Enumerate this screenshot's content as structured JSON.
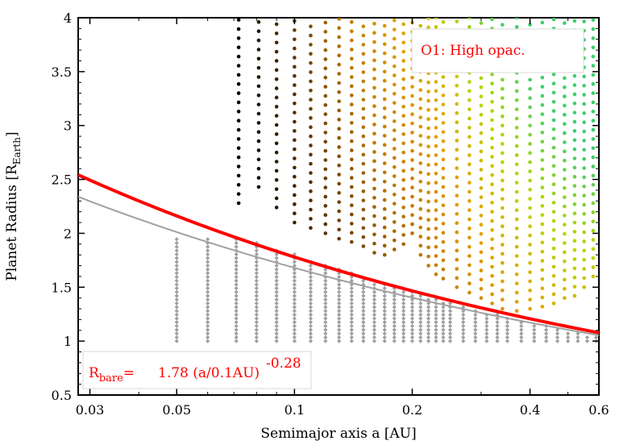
{
  "chart_data": {
    "type": "scatter",
    "xlabel": "Semimajor axis a [AU]",
    "ylabel": {
      "main": "Planet Radius [R",
      "sub": "Earth",
      "close": "]"
    },
    "x_scale": "log",
    "xlim": [
      0.028,
      0.6
    ],
    "ylim": [
      0.5,
      4
    ],
    "x_ticks": [
      0.03,
      0.05,
      0.1,
      0.2,
      0.4,
      0.6
    ],
    "x_tick_labels": [
      "0.03",
      "0.05",
      "0.1",
      "0.2",
      "0.4",
      "0.6"
    ],
    "y_ticks": [
      0.5,
      1,
      1.5,
      2,
      2.5,
      3,
      3.5,
      4
    ],
    "y_tick_labels": [
      "0.5",
      "1",
      "1.5",
      "2",
      "2.5",
      "3",
      "3.5",
      "4"
    ],
    "grid": false,
    "legend": {
      "label": "O1: High opac.",
      "placement": "top-right"
    },
    "annotation": {
      "r": "R",
      "sub": "bare",
      "eq": "=",
      "formula": "1.78 (a/0.1AU)",
      "exponent": "-0.28",
      "placement": "bottom-left"
    },
    "series": [
      {
        "type": "line",
        "color": "#ff0000",
        "formula": "R = 1.78 (a/0.1AU)^-0.28",
        "x": [
          0.028,
          0.04,
          0.06,
          0.08,
          0.1,
          0.15,
          0.2,
          0.3,
          0.4,
          0.5,
          0.6
        ],
        "y": [
          2.54,
          2.27,
          2.02,
          1.89,
          1.78,
          1.59,
          1.47,
          1.31,
          1.21,
          1.13,
          1.08
        ]
      },
      {
        "type": "line",
        "color": "#a0a0a0",
        "x": [
          0.028,
          0.04,
          0.06,
          0.08,
          0.1,
          0.15,
          0.2,
          0.3,
          0.4,
          0.5,
          0.6
        ],
        "y": [
          2.38,
          2.15,
          1.92,
          1.78,
          1.68,
          1.5,
          1.39,
          1.23,
          1.14,
          1.07,
          1.02
        ]
      },
      {
        "type": "scatter",
        "color": "#a0a0a0",
        "marker": "diamond",
        "x": [
          0.05,
          0.06,
          0.071,
          0.08,
          0.09,
          0.1,
          0.11,
          0.12,
          0.13,
          0.14,
          0.15,
          0.16,
          0.17,
          0.18,
          0.19,
          0.2,
          0.21,
          0.22,
          0.23,
          0.24,
          0.25,
          0.27,
          0.29,
          0.31,
          0.33,
          0.35,
          0.38,
          0.41,
          0.44,
          0.47,
          0.5,
          0.53,
          0.56,
          0.59
        ],
        "y_min": 1.0,
        "y_max": [
          1.95,
          1.95,
          1.95,
          1.92,
          1.86,
          1.81,
          1.76,
          1.72,
          1.67,
          1.63,
          1.59,
          1.56,
          1.53,
          1.5,
          1.47,
          1.46,
          1.44,
          1.41,
          1.39,
          1.38,
          1.36,
          1.33,
          1.3,
          1.27,
          1.25,
          1.22,
          1.19,
          1.17,
          1.14,
          1.12,
          1.1,
          1.08,
          1.06,
          1.04
        ]
      },
      {
        "type": "scatter",
        "color_scale": [
          "#000000",
          "#5a3500",
          "#c07800",
          "#e3a000",
          "#b8d600",
          "#3ecf6a"
        ],
        "marker": "circle",
        "x": [
          0.072,
          0.081,
          0.09,
          0.1,
          0.11,
          0.12,
          0.13,
          0.14,
          0.15,
          0.16,
          0.17,
          0.18,
          0.19,
          0.2,
          0.21,
          0.22,
          0.23,
          0.24,
          0.26,
          0.28,
          0.3,
          0.32,
          0.34,
          0.37,
          0.4,
          0.43,
          0.46,
          0.49,
          0.52,
          0.55,
          0.58
        ],
        "y_min": [
          2.28,
          2.4,
          2.24,
          3.0,
          3.3,
          3.7,
          3.95,
          4.0,
          4.0,
          4.0,
          4.0,
          4.0,
          4.0,
          4.0,
          4.0,
          4.0,
          4.0,
          4.0,
          4.0,
          4.0,
          4.0,
          4.0,
          4.0,
          4.0,
          4.0,
          4.0,
          4.0,
          4.0,
          4.0,
          4.0,
          4.0
        ],
        "y_max": [
          2.95,
          2.85,
          2.95,
          3.2,
          3.5,
          3.9,
          4.0,
          4.0,
          4.0,
          4.0,
          4.0,
          4.0,
          4.0,
          4.0,
          4.0,
          4.0,
          4.0,
          4.0,
          4.0,
          4.0,
          4.0,
          4.0,
          4.0,
          4.0,
          4.0,
          4.0,
          4.0,
          4.0,
          4.0,
          4.0,
          4.0
        ],
        "band_bottom": [
          2.28,
          2.43,
          2.24,
          2.1,
          2.05,
          2.0,
          1.95,
          1.92,
          1.88,
          1.82,
          1.8,
          1.85,
          1.9,
          2.0,
          1.8,
          1.7,
          1.62,
          1.58,
          1.5,
          1.45,
          1.4,
          1.35,
          1.3,
          1.28,
          1.3,
          1.32,
          1.35,
          1.4,
          1.42,
          1.5,
          1.6
        ]
      }
    ]
  }
}
